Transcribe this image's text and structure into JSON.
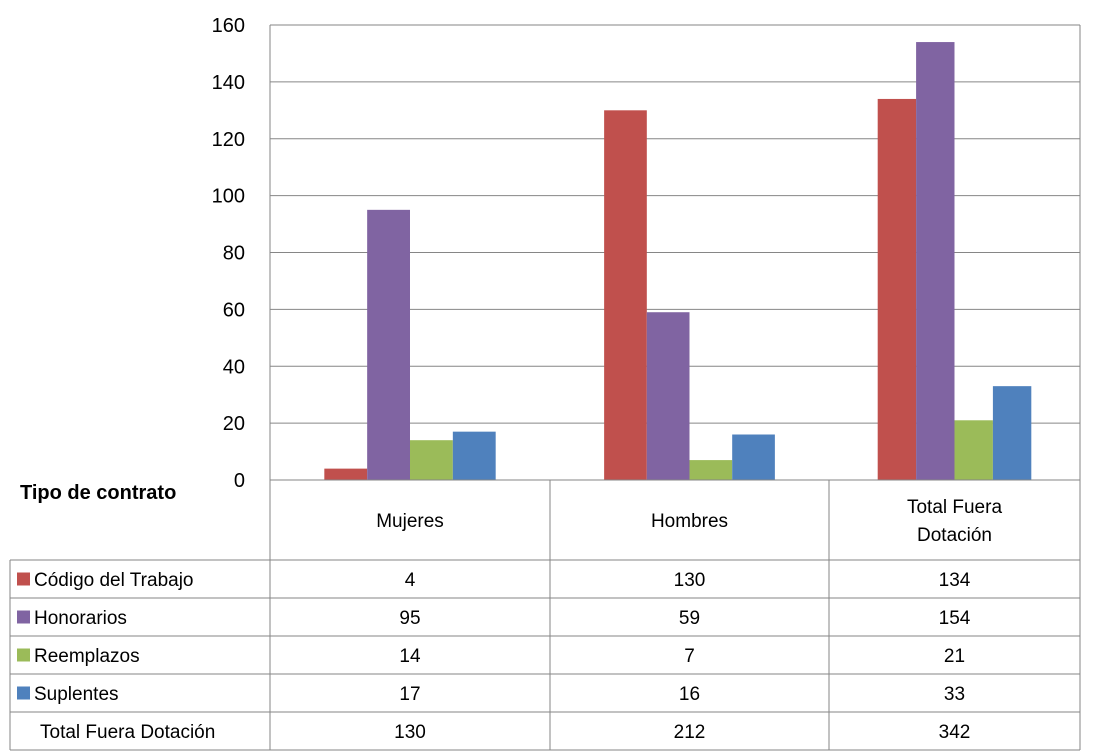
{
  "chart_data": {
    "type": "bar",
    "categories": [
      "Mujeres",
      "Hombres",
      "Total Fuera Dotación"
    ],
    "category_lines": [
      [
        "Mujeres"
      ],
      [
        "Hombres"
      ],
      [
        "Total Fuera",
        "Dotación"
      ]
    ],
    "series": [
      {
        "name": "Código del Trabajo",
        "values": [
          4,
          130,
          134
        ],
        "color": "#C0504D"
      },
      {
        "name": "Honorarios",
        "values": [
          95,
          59,
          154
        ],
        "color": "#8064A2"
      },
      {
        "name": "Reemplazos",
        "values": [
          14,
          7,
          21
        ],
        "color": "#9BBB59"
      },
      {
        "name": "Suplentes",
        "values": [
          17,
          16,
          33
        ],
        "color": "#4F81BD"
      }
    ],
    "totals_row": {
      "label": "Total Fuera Dotación",
      "values": [
        130,
        212,
        342
      ]
    },
    "table_header": "Tipo de contrato",
    "y_ticks": [
      0,
      20,
      40,
      60,
      80,
      100,
      120,
      140,
      160
    ],
    "ylim": [
      0,
      160
    ],
    "grid": true,
    "legend": "data table with legend keys"
  }
}
